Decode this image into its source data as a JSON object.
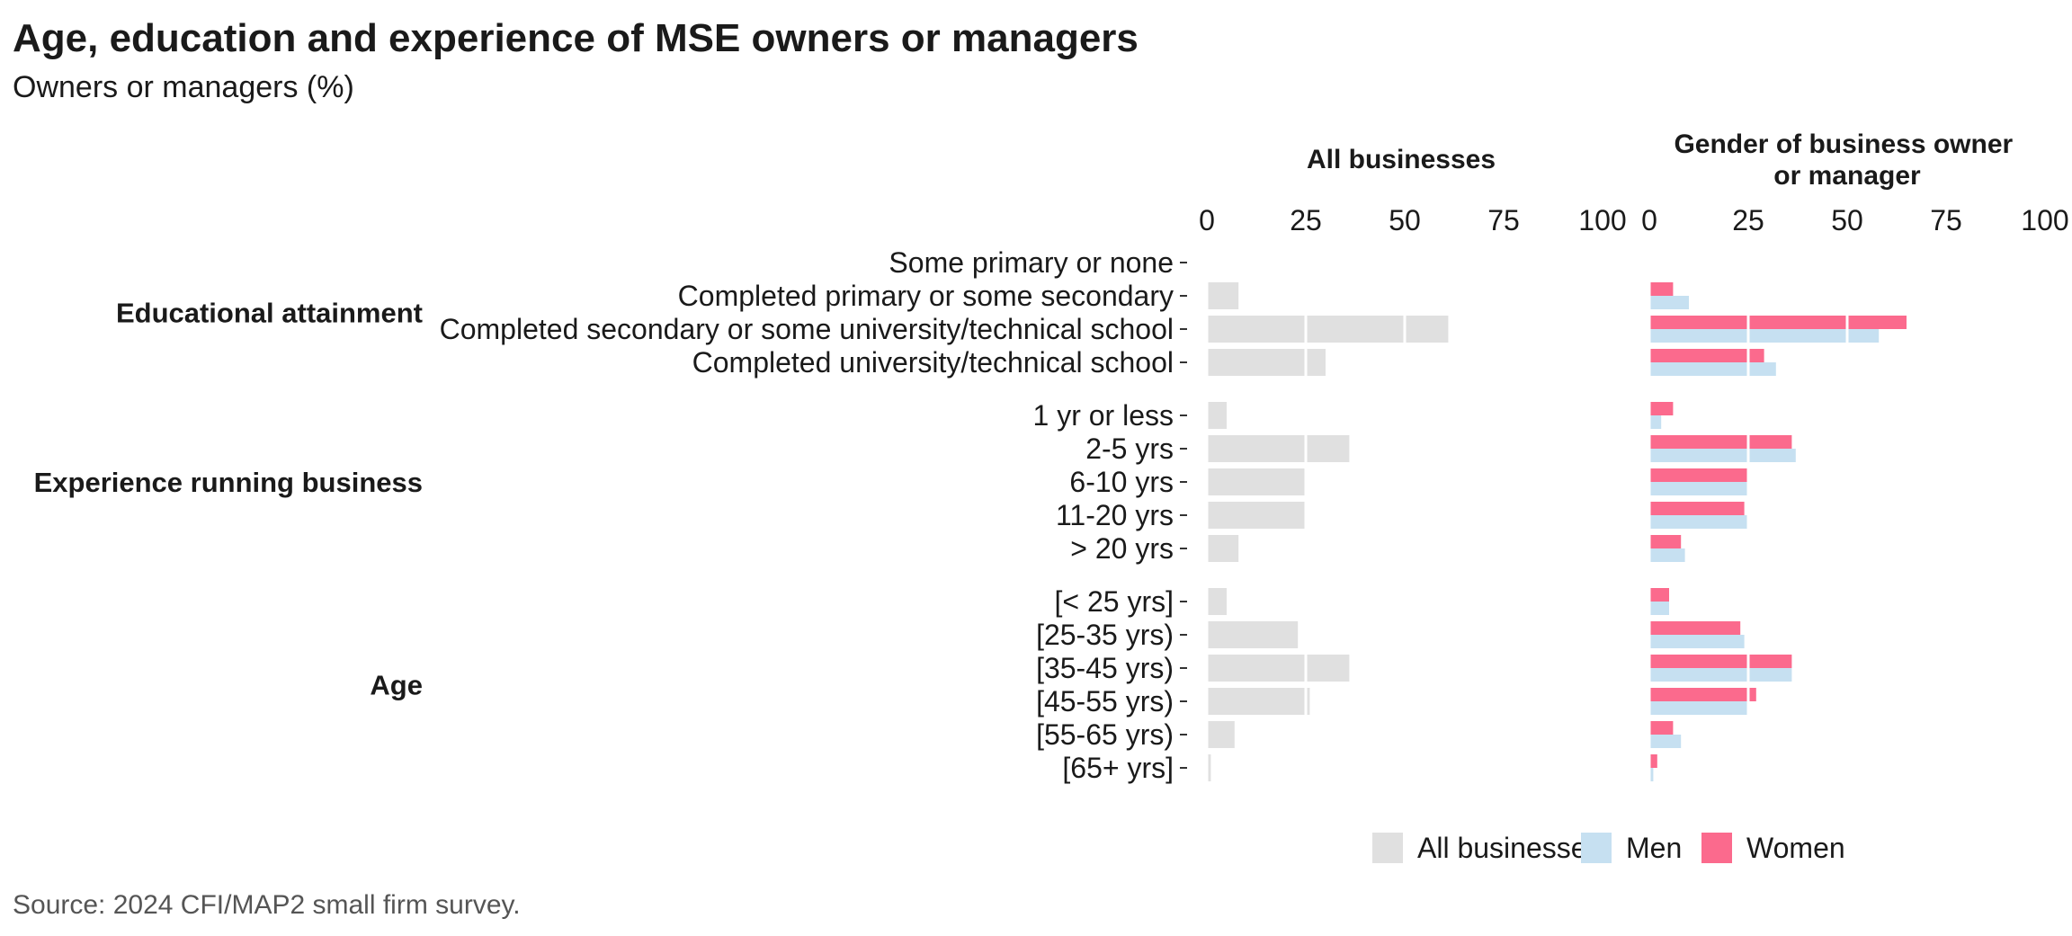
{
  "chart_data": {
    "type": "bar",
    "orientation": "horizontal",
    "title": "Age, education and experience of MSE owners or managers",
    "subtitle": "Owners or managers (%)",
    "source": "Source: 2024 CFI/MAP2 small firm survey.",
    "xlim": [
      0,
      100
    ],
    "xticks": [
      "0",
      "25",
      "50",
      "75",
      "100"
    ],
    "grid": true,
    "legend_position": "bottom-right",
    "panels": [
      {
        "key": "all",
        "title": "All businesses"
      },
      {
        "key": "gender",
        "title": "Gender of business owner or manager",
        "title_lines": [
          "Gender of business owner",
          "or manager"
        ]
      }
    ],
    "legend": [
      {
        "key": "all",
        "label": "All businesses",
        "color": "#e0e0e0"
      },
      {
        "key": "men",
        "label": "Men",
        "color": "#c6e0f1"
      },
      {
        "key": "women",
        "label": "Women",
        "color": "#fb6a8d"
      }
    ],
    "groups": [
      {
        "label": "Educational attainment",
        "categories": [
          {
            "label": "Some primary or none",
            "all": 0,
            "men": 0,
            "women": 0
          },
          {
            "label": "Completed primary or some secondary",
            "all": 8,
            "men": 10,
            "women": 6
          },
          {
            "label": "Completed secondary or some university/technical school",
            "all": 61,
            "men": 58,
            "women": 65
          },
          {
            "label": "Completed university/technical school",
            "all": 30,
            "men": 32,
            "women": 29
          }
        ]
      },
      {
        "label": "Experience running business",
        "categories": [
          {
            "label": "1 yr or less",
            "all": 5,
            "men": 3,
            "women": 6
          },
          {
            "label": "2-5 yrs",
            "all": 36,
            "men": 37,
            "women": 36
          },
          {
            "label": "6-10 yrs",
            "all": 25,
            "men": 25,
            "women": 25
          },
          {
            "label": "11-20 yrs",
            "all": 25,
            "men": 25,
            "women": 24
          },
          {
            "label": "> 20 yrs",
            "all": 8,
            "men": 9,
            "women": 8
          }
        ]
      },
      {
        "label": "Age",
        "categories": [
          {
            "label": "[< 25 yrs]",
            "all": 5,
            "men": 5,
            "women": 5
          },
          {
            "label": "[25-35 yrs)",
            "all": 23,
            "men": 24,
            "women": 23
          },
          {
            "label": "[35-45 yrs)",
            "all": 36,
            "men": 36,
            "women": 36
          },
          {
            "label": "[45-55 yrs)",
            "all": 26,
            "men": 25,
            "women": 27
          },
          {
            "label": "[55-65 yrs)",
            "all": 7,
            "men": 8,
            "women": 6
          },
          {
            "label": "[65+ yrs]",
            "all": 1,
            "men": 1,
            "women": 2
          }
        ]
      }
    ]
  }
}
